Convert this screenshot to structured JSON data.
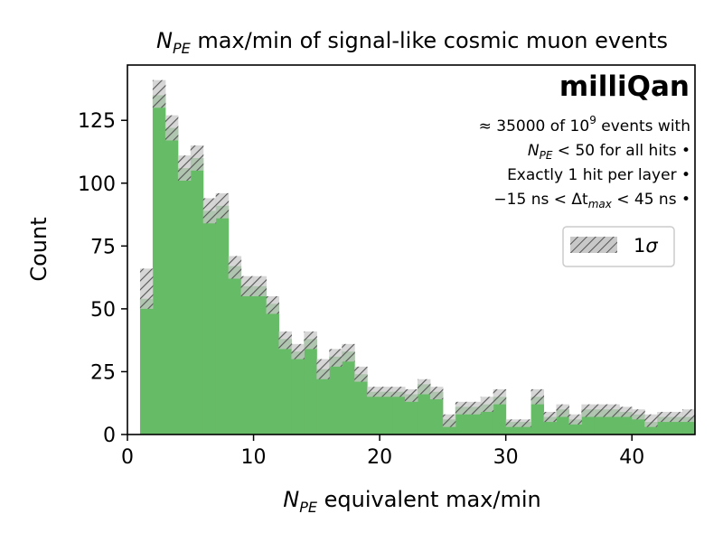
{
  "chart_data": {
    "type": "bar",
    "title_parts": {
      "n": "N",
      "sub": "PE",
      "rest": " max/min of signal-like cosmic muon events"
    },
    "xlabel_parts": {
      "n": "N",
      "sub": "PE",
      "rest": " equivalent max/min"
    },
    "ylabel": "Count",
    "xlim": [
      0,
      45
    ],
    "ylim": [
      0,
      147
    ],
    "x_ticks": [
      0,
      10,
      20,
      30,
      40
    ],
    "y_ticks": [
      0,
      25,
      50,
      75,
      100,
      125
    ],
    "grid": false,
    "bin_width": 1,
    "bin_starts": [
      1,
      2,
      3,
      4,
      5,
      6,
      7,
      8,
      9,
      10,
      11,
      12,
      13,
      14,
      15,
      16,
      17,
      18,
      19,
      20,
      21,
      22,
      23,
      24,
      25,
      26,
      27,
      28,
      29,
      30,
      31,
      32,
      33,
      34,
      35,
      36,
      37,
      38,
      39,
      40,
      41,
      42,
      43,
      44
    ],
    "values": [
      54,
      135,
      122,
      106,
      110,
      89,
      91,
      67,
      59,
      59,
      52,
      38,
      33,
      38,
      26,
      31,
      33,
      24,
      17,
      17,
      17,
      16,
      20,
      17,
      6,
      11,
      11,
      12,
      15,
      5,
      5,
      15,
      7,
      10,
      6,
      10,
      10,
      10,
      9,
      8,
      5,
      7,
      7,
      7
    ],
    "sigma_low": [
      50,
      130,
      117,
      101,
      105,
      84,
      86,
      62,
      55,
      55,
      48,
      34,
      30,
      34,
      22,
      27,
      29,
      21,
      15,
      15,
      15,
      13,
      16,
      14,
      3,
      8,
      8,
      9,
      12,
      3,
      3,
      12,
      5,
      7,
      4,
      7,
      7,
      7,
      7,
      6,
      3,
      5,
      5,
      5
    ],
    "sigma_high": [
      66,
      141,
      127,
      111,
      115,
      94,
      96,
      71,
      63,
      63,
      55,
      41,
      36,
      41,
      30,
      34,
      36,
      27,
      19,
      19,
      19,
      18,
      22,
      19,
      8,
      13,
      13,
      15,
      18,
      6,
      6,
      18,
      9,
      12,
      8,
      12,
      12,
      12,
      11,
      10,
      8,
      9,
      9,
      10
    ],
    "fill_color": "#66bb66",
    "band_color": "#c8c8c8",
    "hatch_color": "#555555",
    "legend_position": "right",
    "legend": {
      "label_main": "1",
      "label_sym": "σ"
    },
    "brand": "milliQan",
    "annotations": {
      "line1_a": "≈ 35000 of 10",
      "line1_sup": "9",
      "line1_b": " events with",
      "line2_n": "N",
      "line2_sub": "PE",
      "line2_rest": " < 50 for all hits •",
      "line3": "Exactly 1 hit per layer •",
      "line4_a": "−15 ns < Δt",
      "line4_sub": "max",
      "line4_b": " < 45 ns •"
    }
  }
}
